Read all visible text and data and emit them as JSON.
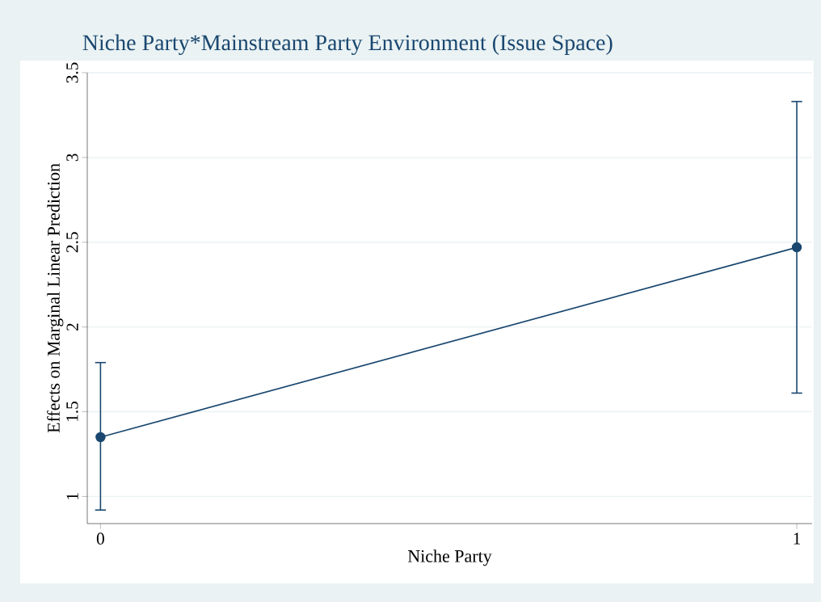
{
  "chart_data": {
    "type": "line",
    "title": "Niche Party*Mainstream Party Environment (Issue Space)",
    "xlabel": "Niche Party",
    "ylabel": "Effects on Marginal Linear Prediction",
    "x": [
      0,
      1
    ],
    "series": [
      {
        "color": "#1a476f",
        "values": [
          1.35,
          2.47
        ],
        "errors": [
          [
            0.92,
            1.79
          ],
          [
            1.61,
            3.33
          ]
        ]
      }
    ],
    "xlim": [
      -0.019,
      1.022
    ],
    "ylim": [
      0.84,
      3.5
    ],
    "xticks": [
      0,
      1
    ],
    "yticks": [
      1,
      1.5,
      2,
      2.5,
      3,
      3.5
    ],
    "grid": "y",
    "marker": "circle",
    "line_style": "solid"
  }
}
